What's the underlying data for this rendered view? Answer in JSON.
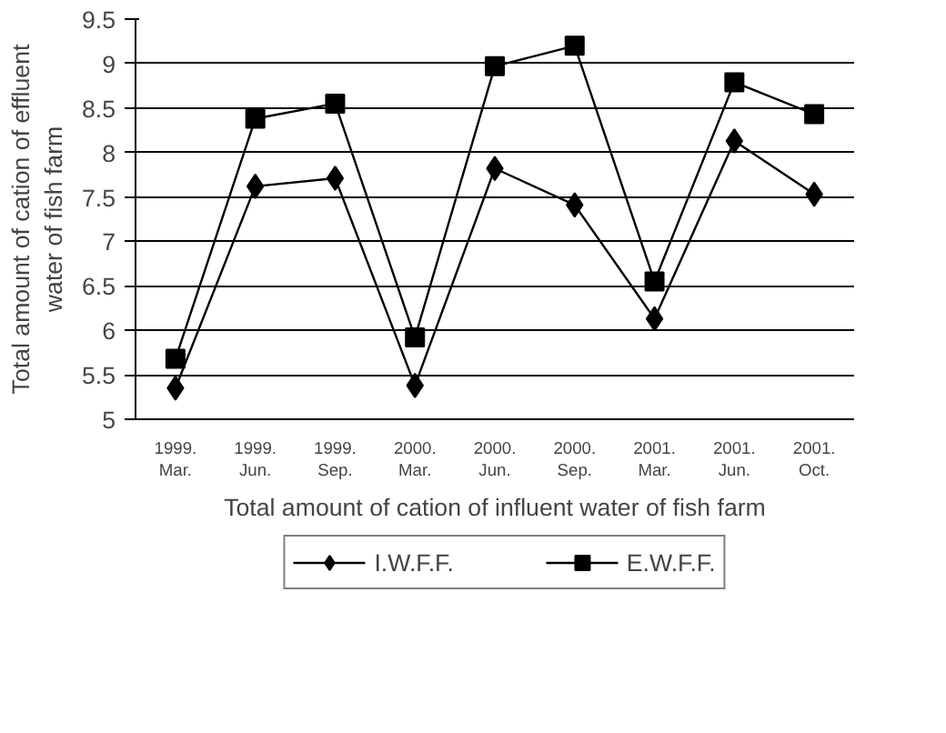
{
  "chart_data": {
    "type": "line",
    "xlabel": "Total amount of cation of influent water of fish farm",
    "ylabel": "Total amount of cation of effluent\nwater of fish farm",
    "categories": [
      "1999.\nMar.",
      "1999.\nJun.",
      "1999.\nSep.",
      "2000.\nMar.",
      "2000.\nJun.",
      "2000.\nSep.",
      "2001.\nMar.",
      "2001.\nJun.",
      "2001.\nOct."
    ],
    "series": [
      {
        "name": "I.W.F.F.",
        "color": "#000000",
        "marker": "diamond",
        "values": [
          5.35,
          7.62,
          7.71,
          5.38,
          7.82,
          7.41,
          6.13,
          8.13,
          7.53
        ]
      },
      {
        "name": "E.W.F.F.",
        "color": "#000000",
        "marker": "square",
        "values": [
          5.68,
          8.38,
          8.55,
          5.92,
          8.97,
          9.2,
          6.55,
          8.79,
          8.43
        ]
      }
    ],
    "ylim": [
      5,
      9.5
    ],
    "yticks": [
      5,
      5.5,
      6,
      6.5,
      7,
      7.5,
      8,
      8.5,
      9,
      9.5
    ],
    "grid": "y",
    "legend": "bottom",
    "line_style": "solid"
  }
}
